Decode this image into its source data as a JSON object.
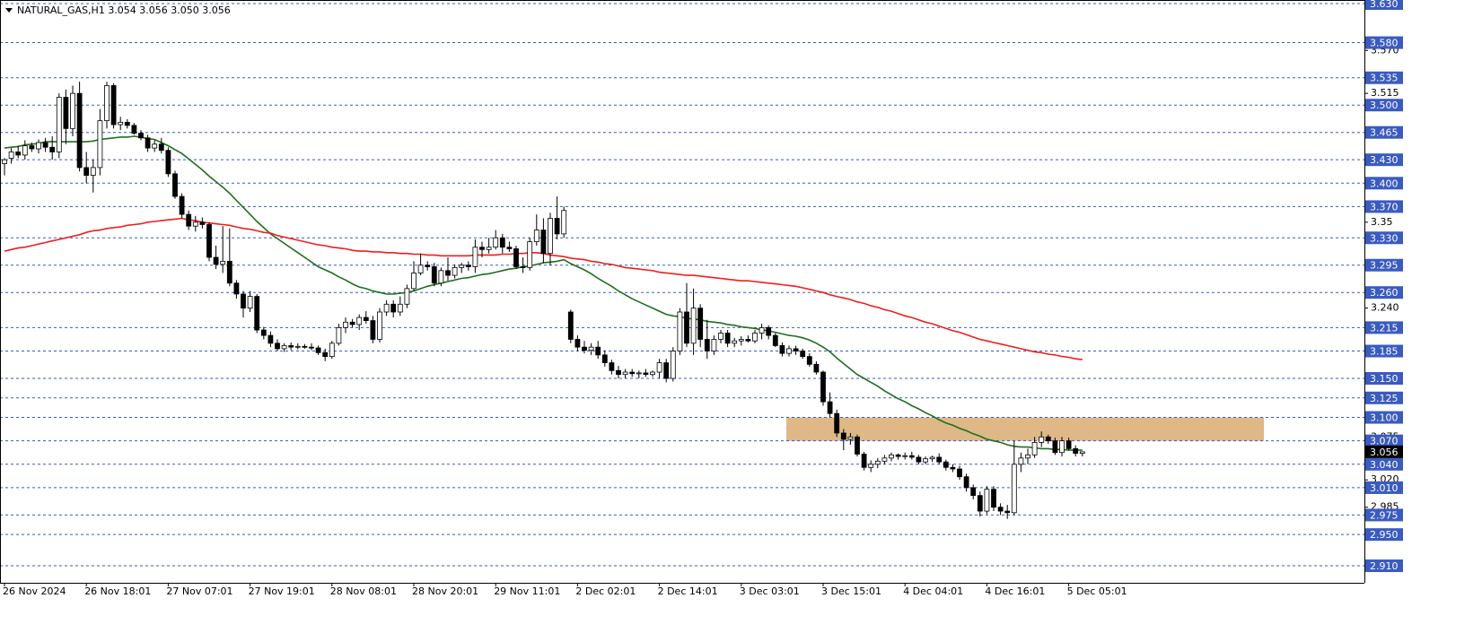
{
  "chart_data": {
    "type": "candlestick",
    "title": "NATURAL_GAS,H1  3.054 3.056 3.050 3.056",
    "categories": [
      "26 Nov 2024",
      null,
      null,
      null,
      null,
      null,
      null,
      null,
      null,
      null,
      null,
      null,
      "26 Nov 18:01",
      null,
      null,
      null,
      null,
      null,
      null,
      null,
      null,
      null,
      null,
      null,
      "27 Nov 07:01",
      null,
      null,
      null,
      null,
      null,
      null,
      null,
      null,
      null,
      null,
      null,
      "27 Nov 19:01",
      null,
      null,
      null,
      null,
      null,
      null,
      null,
      null,
      null,
      null,
      null,
      "28 Nov 08:01",
      null,
      null,
      null,
      null,
      null,
      null,
      null,
      null,
      null,
      null,
      null,
      "28 Nov 20:01",
      null,
      null,
      null,
      null,
      null,
      null,
      null,
      null,
      null,
      null,
      null,
      "29 Nov 11:01",
      null,
      null,
      null,
      null,
      null,
      null,
      null,
      null,
      null,
      null,
      null,
      "2 Dec 02:01",
      null,
      null,
      null,
      null,
      null,
      null,
      null,
      null,
      null,
      null,
      null,
      "2 Dec 14:01",
      null,
      null,
      null,
      null,
      null,
      null,
      null,
      null,
      null,
      null,
      null,
      "3 Dec 03:01",
      null,
      null,
      null,
      null,
      null,
      null,
      null,
      null,
      null,
      null,
      null,
      "3 Dec 15:01",
      null,
      null,
      null,
      null,
      null,
      null,
      null,
      null,
      null,
      null,
      null,
      "4 Dec 04:01",
      null,
      null,
      null,
      null,
      null,
      null,
      null,
      null,
      null,
      null,
      null,
      "4 Dec 16:01",
      null,
      null,
      null,
      null,
      null,
      null,
      null,
      null,
      null,
      null,
      null,
      "5 Dec 05:01",
      null,
      null
    ],
    "open": [
      3.425,
      3.432,
      3.44,
      3.436,
      3.448,
      3.444,
      3.452,
      3.446,
      3.44,
      3.51,
      3.47,
      3.515,
      3.42,
      3.41,
      3.42,
      3.48,
      3.525,
      3.475,
      3.478,
      3.474,
      3.464,
      3.458,
      3.445,
      3.45,
      3.442,
      3.412,
      3.383,
      3.36,
      3.345,
      3.35,
      3.347,
      3.305,
      3.296,
      3.3,
      3.272,
      3.258,
      3.24,
      3.255,
      3.212,
      3.205,
      3.195,
      3.188,
      3.192,
      3.19,
      3.191,
      3.19,
      3.189,
      3.183,
      3.178,
      3.195,
      3.215,
      3.222,
      3.219,
      3.228,
      3.224,
      3.2,
      3.235,
      3.245,
      3.235,
      3.245,
      3.265,
      3.285,
      3.295,
      3.293,
      3.272,
      3.288,
      3.282,
      3.292,
      3.295,
      3.293,
      3.318,
      3.315,
      3.318,
      3.33,
      3.318,
      3.316,
      3.293,
      3.292,
      3.325,
      3.34,
      3.31,
      3.355,
      3.335,
      3.235,
      3.2,
      3.19,
      3.186,
      3.19,
      3.18,
      3.17,
      3.16,
      3.155,
      3.158,
      3.156,
      3.157,
      3.155,
      3.158,
      3.17,
      3.15,
      3.185,
      3.235,
      3.195,
      3.24,
      3.2,
      3.185,
      3.2,
      3.208,
      3.195,
      3.198,
      3.2,
      3.198,
      3.208,
      3.215,
      3.205,
      3.192,
      3.182,
      3.188,
      3.185,
      3.178,
      3.168,
      3.158,
      3.12,
      3.105,
      3.08,
      3.072,
      3.075,
      3.053,
      3.036,
      3.04,
      3.044,
      3.048,
      3.052,
      3.05,
      3.051,
      3.049,
      3.043,
      3.047,
      3.049,
      3.043,
      3.036,
      3.034,
      3.024,
      3.01,
      3.0,
      2.98,
      3.008,
      2.985,
      2.98,
      2.978,
      3.04,
      3.048,
      3.052,
      3.068,
      3.075,
      3.07,
      3.055,
      3.07,
      3.06,
      3.054
    ],
    "high": [
      3.432,
      3.445,
      3.448,
      3.455,
      3.452,
      3.456,
      3.458,
      3.46,
      3.515,
      3.52,
      3.525,
      3.53,
      3.44,
      3.43,
      3.495,
      3.53,
      3.528,
      3.485,
      3.482,
      3.477,
      3.468,
      3.462,
      3.455,
      3.458,
      3.446,
      3.416,
      3.387,
      3.365,
      3.358,
      3.356,
      3.35,
      3.32,
      3.345,
      3.342,
      3.276,
      3.262,
      3.262,
      3.258,
      3.216,
      3.21,
      3.2,
      3.195,
      3.196,
      3.195,
      3.194,
      3.195,
      3.192,
      3.188,
      3.198,
      3.22,
      3.228,
      3.226,
      3.232,
      3.236,
      3.23,
      3.24,
      3.25,
      3.25,
      3.255,
      3.27,
      3.3,
      3.31,
      3.3,
      3.298,
      3.292,
      3.305,
      3.296,
      3.298,
      3.3,
      3.328,
      3.325,
      3.33,
      3.34,
      3.335,
      3.325,
      3.32,
      3.305,
      3.33,
      3.36,
      3.355,
      3.362,
      3.383,
      3.37,
      3.238,
      3.205,
      3.198,
      3.195,
      3.198,
      3.186,
      3.174,
      3.166,
      3.162,
      3.162,
      3.16,
      3.162,
      3.16,
      3.175,
      3.175,
      3.19,
      3.24,
      3.272,
      3.265,
      3.245,
      3.225,
      3.205,
      3.212,
      3.212,
      3.202,
      3.204,
      3.205,
      3.212,
      3.22,
      3.218,
      3.208,
      3.196,
      3.192,
      3.192,
      3.188,
      3.182,
      3.172,
      3.16,
      3.132,
      3.11,
      3.085,
      3.08,
      3.078,
      3.056,
      3.045,
      3.048,
      3.052,
      3.055,
      3.054,
      3.055,
      3.056,
      3.052,
      3.05,
      3.051,
      3.054,
      3.046,
      3.04,
      3.038,
      3.028,
      3.014,
      3.005,
      3.012,
      3.012,
      2.99,
      2.988,
      3.07,
      3.055,
      3.06,
      3.075,
      3.082,
      3.078,
      3.074,
      3.075,
      3.074,
      3.064,
      3.056
    ],
    "low": [
      3.41,
      3.425,
      3.432,
      3.43,
      3.44,
      3.438,
      3.44,
      3.43,
      3.432,
      3.45,
      3.46,
      3.415,
      3.4,
      3.388,
      3.41,
      3.47,
      3.47,
      3.468,
      3.47,
      3.462,
      3.455,
      3.44,
      3.44,
      3.438,
      3.408,
      3.38,
      3.355,
      3.34,
      3.338,
      3.342,
      3.3,
      3.29,
      3.285,
      3.268,
      3.252,
      3.228,
      3.235,
      3.208,
      3.2,
      3.19,
      3.185,
      3.184,
      3.186,
      3.187,
      3.188,
      3.186,
      3.18,
      3.172,
      3.175,
      3.192,
      3.208,
      3.215,
      3.212,
      3.22,
      3.195,
      3.196,
      3.23,
      3.228,
      3.23,
      3.24,
      3.262,
      3.282,
      3.288,
      3.268,
      3.268,
      3.275,
      3.278,
      3.285,
      3.288,
      3.285,
      3.305,
      3.31,
      3.315,
      3.31,
      3.312,
      3.29,
      3.285,
      3.288,
      3.32,
      3.298,
      3.295,
      3.328,
      3.33,
      3.195,
      3.185,
      3.182,
      3.18,
      3.175,
      3.165,
      3.155,
      3.15,
      3.15,
      3.152,
      3.15,
      3.152,
      3.152,
      3.15,
      3.145,
      3.146,
      3.18,
      3.19,
      3.18,
      3.19,
      3.175,
      3.18,
      3.195,
      3.19,
      3.19,
      3.192,
      3.196,
      3.195,
      3.2,
      3.2,
      3.19,
      3.178,
      3.178,
      3.18,
      3.175,
      3.165,
      3.155,
      3.115,
      3.1,
      3.075,
      3.058,
      3.065,
      3.05,
      3.032,
      3.03,
      3.035,
      3.04,
      3.044,
      3.046,
      3.046,
      3.046,
      3.04,
      3.04,
      3.043,
      3.04,
      3.032,
      3.03,
      3.02,
      3.005,
      2.995,
      2.973,
      2.976,
      2.98,
      2.975,
      2.97,
      2.975,
      3.03,
      3.04,
      3.048,
      3.062,
      3.066,
      3.052,
      3.05,
      3.058,
      3.05,
      3.05
    ],
    "close": [
      3.43,
      3.44,
      3.436,
      3.448,
      3.444,
      3.452,
      3.446,
      3.44,
      3.51,
      3.47,
      3.515,
      3.42,
      3.41,
      3.42,
      3.48,
      3.525,
      3.475,
      3.478,
      3.474,
      3.464,
      3.458,
      3.445,
      3.45,
      3.442,
      3.412,
      3.383,
      3.36,
      3.345,
      3.35,
      3.347,
      3.305,
      3.296,
      3.3,
      3.272,
      3.258,
      3.24,
      3.255,
      3.212,
      3.205,
      3.195,
      3.188,
      3.192,
      3.19,
      3.191,
      3.19,
      3.189,
      3.183,
      3.178,
      3.195,
      3.215,
      3.222,
      3.219,
      3.228,
      3.224,
      3.2,
      3.235,
      3.245,
      3.235,
      3.245,
      3.265,
      3.285,
      3.295,
      3.293,
      3.272,
      3.288,
      3.282,
      3.292,
      3.295,
      3.293,
      3.318,
      3.315,
      3.318,
      3.33,
      3.318,
      3.316,
      3.293,
      3.292,
      3.325,
      3.34,
      3.31,
      3.355,
      3.335,
      3.365,
      3.2,
      3.19,
      3.186,
      3.19,
      3.18,
      3.17,
      3.16,
      3.155,
      3.158,
      3.156,
      3.157,
      3.155,
      3.158,
      3.17,
      3.15,
      3.185,
      3.235,
      3.195,
      3.24,
      3.2,
      3.185,
      3.2,
      3.208,
      3.195,
      3.198,
      3.2,
      3.198,
      3.208,
      3.215,
      3.205,
      3.192,
      3.182,
      3.188,
      3.185,
      3.178,
      3.168,
      3.158,
      3.12,
      3.105,
      3.08,
      3.072,
      3.075,
      3.053,
      3.036,
      3.04,
      3.044,
      3.048,
      3.052,
      3.05,
      3.051,
      3.049,
      3.043,
      3.047,
      3.049,
      3.043,
      3.036,
      3.034,
      3.024,
      3.01,
      3.0,
      2.98,
      3.008,
      2.985,
      2.98,
      2.978,
      3.04,
      3.048,
      3.052,
      3.068,
      3.075,
      3.07,
      3.055,
      3.07,
      3.06,
      3.054,
      3.056
    ],
    "up_color": "#ffffff",
    "down_color": "#000000",
    "lines": [
      {
        "color": "#1f6e1f",
        "values": [
          3.445,
          3.446,
          3.447,
          3.449,
          3.45,
          3.451,
          3.453,
          3.453,
          3.453,
          3.453,
          3.453,
          3.453,
          3.453,
          3.454,
          3.456,
          3.457,
          3.458,
          3.459,
          3.459,
          3.46,
          3.459,
          3.457,
          3.456,
          3.452,
          3.448,
          3.443,
          3.438,
          3.431,
          3.424,
          3.417,
          3.409,
          3.402,
          3.395,
          3.387,
          3.378,
          3.369,
          3.36,
          3.351,
          3.343,
          3.335,
          3.329,
          3.323,
          3.317,
          3.311,
          3.305,
          3.299,
          3.293,
          3.289,
          3.285,
          3.28,
          3.276,
          3.271,
          3.267,
          3.265,
          3.262,
          3.26,
          3.258,
          3.258,
          3.259,
          3.26,
          3.262,
          3.265,
          3.268,
          3.27,
          3.272,
          3.274,
          3.276,
          3.278,
          3.279,
          3.281,
          3.283,
          3.284,
          3.286,
          3.288,
          3.29,
          3.291,
          3.293,
          3.294,
          3.296,
          3.298,
          3.299,
          3.3,
          3.302,
          3.297,
          3.293,
          3.289,
          3.284,
          3.278,
          3.273,
          3.268,
          3.262,
          3.257,
          3.252,
          3.248,
          3.244,
          3.24,
          3.236,
          3.232,
          3.23,
          3.229,
          3.227,
          3.226,
          3.225,
          3.223,
          3.222,
          3.221,
          3.219,
          3.218,
          3.216,
          3.215,
          3.214,
          3.212,
          3.211,
          3.209,
          3.207,
          3.205,
          3.204,
          3.202,
          3.199,
          3.195,
          3.19,
          3.184,
          3.176,
          3.169,
          3.162,
          3.155,
          3.15,
          3.145,
          3.14,
          3.134,
          3.129,
          3.124,
          3.12,
          3.115,
          3.111,
          3.106,
          3.102,
          3.097,
          3.093,
          3.09,
          3.086,
          3.083,
          3.079,
          3.076,
          3.072,
          3.07,
          3.068,
          3.065,
          3.063,
          3.062,
          3.062,
          3.061,
          3.06,
          3.06,
          3.059,
          3.059,
          3.058,
          3.058,
          3.058
        ]
      },
      {
        "color": "#f01e1e",
        "values": [
          3.313,
          3.315,
          3.317,
          3.318,
          3.32,
          3.322,
          3.324,
          3.326,
          3.328,
          3.33,
          3.332,
          3.334,
          3.337,
          3.339,
          3.34,
          3.342,
          3.343,
          3.344,
          3.346,
          3.347,
          3.348,
          3.35,
          3.351,
          3.352,
          3.353,
          3.354,
          3.355,
          3.353,
          3.352,
          3.35,
          3.349,
          3.348,
          3.347,
          3.346,
          3.344,
          3.342,
          3.341,
          3.339,
          3.337,
          3.336,
          3.333,
          3.331,
          3.329,
          3.327,
          3.325,
          3.323,
          3.321,
          3.32,
          3.318,
          3.317,
          3.316,
          3.314,
          3.313,
          3.313,
          3.312,
          3.312,
          3.311,
          3.311,
          3.31,
          3.31,
          3.309,
          3.309,
          3.308,
          3.308,
          3.307,
          3.307,
          3.307,
          3.307,
          3.307,
          3.308,
          3.308,
          3.308,
          3.308,
          3.309,
          3.309,
          3.31,
          3.31,
          3.311,
          3.311,
          3.31,
          3.308,
          3.307,
          3.306,
          3.304,
          3.303,
          3.302,
          3.3,
          3.299,
          3.297,
          3.296,
          3.294,
          3.292,
          3.291,
          3.29,
          3.289,
          3.288,
          3.286,
          3.285,
          3.284,
          3.283,
          3.282,
          3.282,
          3.281,
          3.28,
          3.279,
          3.278,
          3.277,
          3.276,
          3.275,
          3.275,
          3.274,
          3.273,
          3.272,
          3.271,
          3.27,
          3.269,
          3.268,
          3.266,
          3.264,
          3.262,
          3.26,
          3.257,
          3.255,
          3.253,
          3.251,
          3.248,
          3.246,
          3.243,
          3.241,
          3.238,
          3.236,
          3.233,
          3.23,
          3.228,
          3.225,
          3.222,
          3.22,
          3.217,
          3.214,
          3.211,
          3.209,
          3.206,
          3.203,
          3.2,
          3.198,
          3.196,
          3.194,
          3.192,
          3.19,
          3.188,
          3.186,
          3.184,
          3.183,
          3.181,
          3.18,
          3.178,
          3.177,
          3.175,
          3.174
        ]
      }
    ],
    "zone": {
      "from": 3.07,
      "to": 3.1,
      "color": "#deb887"
    },
    "ylim": [
      2.8882,
      3.6346
    ],
    "yticks": [
      {
        "value": 3.57,
        "label": "3.570"
      },
      3.515,
      3.35,
      {
        "value": 3.24,
        "label": "3.240"
      },
      3.075,
      {
        "value": 3.02,
        "label": "3.020"
      },
      2.985
    ],
    "level_color": "#3a5bbf",
    "levels": [
      {
        "value": 3.63,
        "label": "3.630"
      },
      {
        "value": 3.58,
        "label": "3.580"
      },
      3.535,
      {
        "value": 3.5,
        "label": "3.500"
      },
      3.465,
      {
        "value": 3.43,
        "label": "3.430"
      },
      {
        "value": 3.4,
        "label": "3.400"
      },
      {
        "value": 3.37,
        "label": "3.370"
      },
      {
        "value": 3.33,
        "label": "3.330"
      },
      3.295,
      {
        "value": 3.26,
        "label": "3.260"
      },
      3.215,
      3.185,
      {
        "value": 3.15,
        "label": "3.150"
      },
      3.125,
      {
        "value": 3.1,
        "label": "3.100"
      },
      {
        "value": 3.07,
        "label": "3.070"
      },
      {
        "value": 3.04,
        "label": "3.040"
      },
      {
        "value": 3.01,
        "label": "3.010"
      },
      2.975,
      {
        "value": 2.95,
        "label": "2.950"
      },
      {
        "value": 2.91,
        "label": "2.910"
      }
    ],
    "last_price": 3.056
  }
}
